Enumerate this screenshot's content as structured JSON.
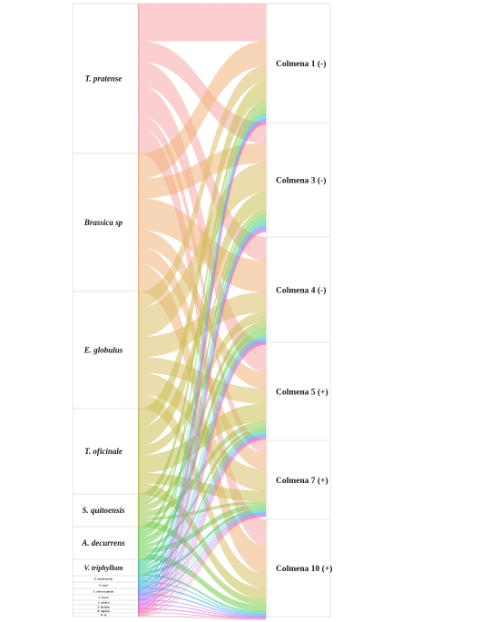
{
  "sources": [
    {
      "name": "T. pratense",
      "color": "#f7a8a8",
      "weight": 165
    },
    {
      "name": "Brassica sp",
      "color": "#f0b47c",
      "weight": 152
    },
    {
      "name": "E. globulus",
      "color": "#dcbe6a",
      "weight": 129
    },
    {
      "name": "T. oficinale",
      "color": "#c9bf52",
      "weight": 94
    },
    {
      "name": "S. quitoensis",
      "color": "#9bc64e",
      "weight": 36
    },
    {
      "name": "A. decurrens",
      "color": "#6fcf52",
      "weight": 36
    },
    {
      "name": "V. triphyllum",
      "color": "#45c890",
      "weight": 18
    },
    {
      "name": "P. longebracata",
      "color": "#3fc6c0",
      "weight": 7
    },
    {
      "name": "Z. mays",
      "color": "#45b0e6",
      "weight": 7
    },
    {
      "name": "S. chrysocephala",
      "color": "#6a8ff0",
      "weight": 7
    },
    {
      "name": "S. macro",
      "color": "#9a7cf0",
      "weight": 6
    },
    {
      "name": "L. arctica",
      "color": "#c373ea",
      "weight": 5
    },
    {
      "name": "S. lucinda",
      "color": "#e06ad8",
      "weight": 5
    },
    {
      "name": "B. nigrum",
      "color": "#f06ab0",
      "weight": 4
    },
    {
      "name": "D. sp",
      "color": "#f58aa2",
      "weight": 4
    }
  ],
  "targets": [
    {
      "name": "Colmena 1 (-)",
      "weight": 131
    },
    {
      "name": "Colmena 3 (-)",
      "weight": 126
    },
    {
      "name": "Colmena 4 (-)",
      "weight": 116
    },
    {
      "name": "Colmena 5 (+)",
      "weight": 108
    },
    {
      "name": "Colmena 7 (+)",
      "weight": 87
    },
    {
      "name": "Colmena 10 (+)",
      "weight": 107
    }
  ]
}
